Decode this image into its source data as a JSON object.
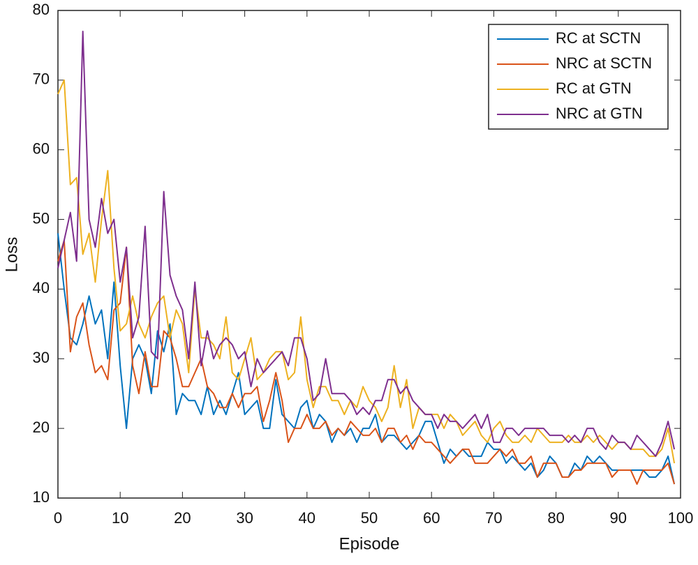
{
  "chart_data": {
    "type": "line",
    "xlabel": "Episode",
    "ylabel": "Loss",
    "x": [
      0,
      1,
      2,
      3,
      4,
      5,
      6,
      7,
      8,
      9,
      10,
      11,
      12,
      13,
      14,
      15,
      16,
      17,
      18,
      19,
      20,
      21,
      22,
      23,
      24,
      25,
      26,
      27,
      28,
      29,
      30,
      31,
      32,
      33,
      34,
      35,
      36,
      37,
      38,
      39,
      40,
      41,
      42,
      43,
      44,
      45,
      46,
      47,
      48,
      49,
      50,
      51,
      52,
      53,
      54,
      55,
      56,
      57,
      58,
      59,
      60,
      61,
      62,
      63,
      64,
      65,
      66,
      67,
      68,
      69,
      70,
      71,
      72,
      73,
      74,
      75,
      76,
      77,
      78,
      79,
      80,
      81,
      82,
      83,
      84,
      85,
      86,
      87,
      88,
      89,
      90,
      91,
      92,
      93,
      94,
      95,
      96,
      97,
      98,
      99
    ],
    "series": [
      {
        "name": "RC at SCTN",
        "color": "#0072bd",
        "values": [
          48,
          40,
          33,
          32,
          35,
          39,
          35,
          37,
          30,
          41,
          29,
          20,
          30,
          32,
          30,
          25,
          34,
          31,
          35,
          22,
          25,
          24,
          24,
          22,
          26,
          22,
          24,
          22,
          25,
          28,
          22,
          23,
          24,
          20,
          20,
          27,
          22,
          21,
          20,
          23,
          24,
          20,
          22,
          21,
          18,
          20,
          19,
          20,
          18,
          20,
          20,
          22,
          18,
          19,
          19,
          18,
          17,
          18,
          19,
          21,
          21,
          18,
          15,
          17,
          16,
          17,
          16,
          16,
          16,
          18,
          17,
          17,
          15,
          16,
          15,
          14,
          15,
          13,
          14,
          16,
          15,
          13,
          13,
          15,
          14,
          16,
          15,
          16,
          15,
          14,
          14,
          14,
          14,
          14,
          14,
          13,
          13,
          14,
          16,
          12
        ]
      },
      {
        "name": "NRC at SCTN",
        "color": "#d95319",
        "values": [
          44,
          47,
          31,
          36,
          38,
          32,
          28,
          29,
          27,
          37,
          38,
          46,
          29,
          25,
          31,
          26,
          26,
          34,
          33,
          30,
          26,
          26,
          28,
          30,
          26,
          25,
          23,
          23,
          25,
          23,
          25,
          25,
          26,
          21,
          24,
          28,
          24,
          18,
          20,
          20,
          22,
          20,
          20,
          21,
          19,
          20,
          19,
          21,
          20,
          19,
          19,
          20,
          18,
          20,
          20,
          18,
          19,
          17,
          19,
          18,
          18,
          17,
          16,
          15,
          16,
          17,
          17,
          15,
          15,
          15,
          16,
          17,
          16,
          17,
          15,
          15,
          16,
          13,
          15,
          15,
          15,
          13,
          13,
          14,
          14,
          15,
          15,
          15,
          15,
          13,
          14,
          14,
          14,
          12,
          14,
          14,
          14,
          14,
          15,
          12
        ]
      },
      {
        "name": "RC at GTN",
        "color": "#edb120",
        "values": [
          68,
          70,
          55,
          56,
          45,
          48,
          41,
          50,
          57,
          43,
          34,
          35,
          39,
          35,
          33,
          36,
          38,
          39,
          33,
          37,
          35,
          28,
          40,
          33,
          33,
          32,
          30,
          36,
          28,
          27,
          30,
          33,
          27,
          28,
          30,
          31,
          31,
          27,
          28,
          36,
          27,
          23,
          26,
          26,
          24,
          24,
          22,
          24,
          23,
          26,
          24,
          23,
          21,
          23,
          29,
          23,
          27,
          20,
          23,
          22,
          22,
          22,
          20,
          22,
          21,
          19,
          20,
          21,
          19,
          18,
          20,
          21,
          19,
          18,
          18,
          19,
          18,
          20,
          19,
          18,
          18,
          18,
          19,
          18,
          18,
          19,
          18,
          19,
          18,
          17,
          18,
          18,
          17,
          17,
          17,
          16,
          16,
          17,
          20,
          15
        ]
      },
      {
        "name": "NRC at GTN",
        "color": "#7e2f8e",
        "values": [
          43,
          47,
          51,
          44,
          77,
          50,
          46,
          53,
          48,
          50,
          41,
          46,
          33,
          36,
          49,
          31,
          30,
          54,
          42,
          39,
          37,
          30,
          41,
          29,
          34,
          30,
          32,
          33,
          32,
          30,
          31,
          26,
          30,
          28,
          29,
          30,
          31,
          29,
          33,
          33,
          30,
          24,
          25,
          30,
          25,
          25,
          25,
          24,
          22,
          23,
          22,
          24,
          24,
          27,
          27,
          25,
          26,
          24,
          23,
          22,
          22,
          20,
          22,
          21,
          21,
          20,
          21,
          22,
          20,
          22,
          18,
          18,
          20,
          20,
          19,
          20,
          20,
          20,
          20,
          19,
          19,
          19,
          18,
          19,
          18,
          20,
          20,
          18,
          17,
          19,
          18,
          18,
          17,
          19,
          18,
          17,
          16,
          18,
          21,
          17
        ]
      }
    ],
    "xlim": [
      0,
      100
    ],
    "xticks": [
      0,
      10,
      20,
      30,
      40,
      50,
      60,
      70,
      80,
      90,
      100
    ],
    "ylim": [
      10,
      80
    ],
    "yticks": [
      10,
      20,
      30,
      40,
      50,
      60,
      70,
      80
    ],
    "grid": false,
    "legend": "northeast"
  }
}
